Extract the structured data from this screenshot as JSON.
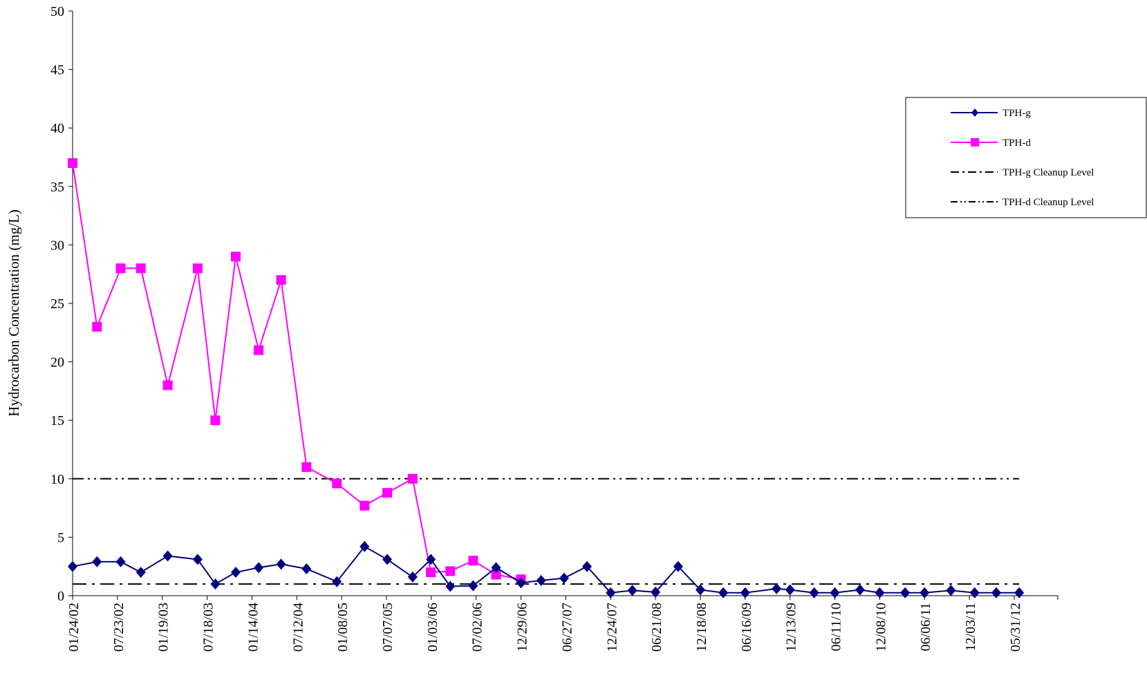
{
  "chart_data": {
    "type": "line",
    "title": "",
    "xlabel": "",
    "ylabel": "Hydrocarbon Concentration (mg/L)",
    "ylim": [
      0,
      50
    ],
    "yticks": [
      0,
      5,
      10,
      15,
      20,
      25,
      30,
      35,
      40,
      45,
      50
    ],
    "xlim": [
      "2002-01-24",
      "2012-11-22"
    ],
    "xtick_labels": [
      "01/24/02",
      "07/23/02",
      "01/19/03",
      "07/18/03",
      "01/14/04",
      "07/12/04",
      "01/08/05",
      "07/07/05",
      "01/03/06",
      "07/02/06",
      "12/29/06",
      "06/27/07",
      "12/24/07",
      "06/21/08",
      "12/18/08",
      "06/16/09",
      "12/13/09",
      "06/11/10",
      "12/08/10",
      "06/06/11",
      "12/03/11",
      "05/31/12"
    ],
    "grid": false,
    "legend_position": "right",
    "series": [
      {
        "name": "TPH-g",
        "color": "#000080",
        "marker": "diamond",
        "x": [
          "2002-01-24",
          "2002-05-02",
          "2002-08-05",
          "2002-10-25",
          "2003-02-10",
          "2003-06-10",
          "2003-08-20",
          "2003-11-10",
          "2004-02-10",
          "2004-05-10",
          "2004-08-20",
          "2004-12-20",
          "2005-04-10",
          "2005-07-10",
          "2005-10-20",
          "2006-01-01",
          "2006-03-20",
          "2006-06-20",
          "2006-09-20",
          "2006-12-29",
          "2007-03-20",
          "2007-06-20",
          "2007-09-20",
          "2007-12-24",
          "2008-03-20",
          "2008-06-21",
          "2008-09-20",
          "2008-12-18",
          "2009-03-20",
          "2009-06-16",
          "2009-10-20",
          "2009-12-13",
          "2010-03-20",
          "2010-06-11",
          "2010-09-20",
          "2010-12-08",
          "2011-03-20",
          "2011-06-06",
          "2011-09-20",
          "2011-12-24",
          "2012-03-20",
          "2012-06-20"
        ],
        "values": [
          2.5,
          2.9,
          2.9,
          2.0,
          3.4,
          3.1,
          1.0,
          2.0,
          2.4,
          2.7,
          2.3,
          1.2,
          4.2,
          3.1,
          1.6,
          3.1,
          0.8,
          0.85,
          2.4,
          1.1,
          1.3,
          1.5,
          2.5,
          0.25,
          0.45,
          0.3,
          2.5,
          0.5,
          0.25,
          0.25,
          0.6,
          0.5,
          0.25,
          0.25,
          0.5,
          0.25,
          0.25,
          0.25,
          0.45,
          0.25,
          0.25,
          0.25
        ]
      },
      {
        "name": "TPH-d",
        "color": "#ff00ff",
        "marker": "square",
        "x": [
          "2002-01-24",
          "2002-05-02",
          "2002-08-05",
          "2002-10-25",
          "2003-02-10",
          "2003-06-10",
          "2003-08-20",
          "2003-11-10",
          "2004-02-10",
          "2004-05-10",
          "2004-08-20",
          "2004-12-20",
          "2005-04-10",
          "2005-07-10",
          "2005-10-20",
          "2006-01-01",
          "2006-03-20",
          "2006-06-20",
          "2006-09-20",
          "2006-12-29"
        ],
        "values": [
          37,
          23,
          28,
          28,
          18,
          28,
          15,
          29,
          21,
          27,
          11,
          9.6,
          7.7,
          8.8,
          10,
          2.0,
          2.1,
          3.0,
          1.8,
          1.4
        ]
      }
    ],
    "reference_lines": [
      {
        "name": "TPH-g Cleanup Level",
        "value": 1,
        "style": "dash-dot"
      },
      {
        "name": "TPH-d Cleanup Level",
        "value": 10,
        "style": "dash-dot-dot"
      }
    ]
  }
}
